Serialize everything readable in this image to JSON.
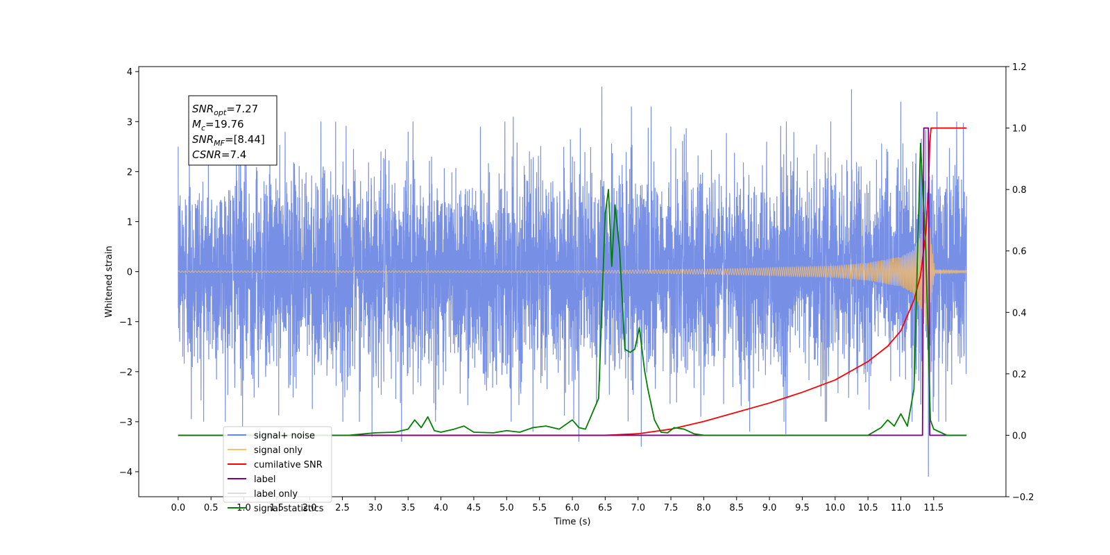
{
  "chart_data": {
    "type": "line",
    "xlabel": "Time (s)",
    "ylabel": "Whitened strain",
    "xlim": [
      -0.6,
      12.6
    ],
    "ylim_left": [
      -4.5,
      4.1
    ],
    "ylim_right": [
      -0.2,
      1.2
    ],
    "x_ticks": [
      0.0,
      0.5,
      1.0,
      1.5,
      2.0,
      2.5,
      3.0,
      3.5,
      4.0,
      4.5,
      5.0,
      5.5,
      6.0,
      6.5,
      7.0,
      7.5,
      8.0,
      8.5,
      9.0,
      9.5,
      10.0,
      10.5,
      11.0,
      11.5
    ],
    "x_tick_labels": [
      "0.0",
      "0.5",
      "1.0",
      "1.5",
      "2.0",
      "2.5",
      "3.0",
      "3.5",
      "4.0",
      "4.5",
      "5.0",
      "5.5",
      "6.0",
      "6.5",
      "7.0",
      "7.5",
      "8.0",
      "8.5",
      "9.0",
      "9.5",
      "10.0",
      "10.5",
      "11.0",
      "11.5"
    ],
    "y_left_ticks": [
      4,
      3,
      2,
      1,
      0,
      -1,
      -2,
      -3,
      -4
    ],
    "y_left_tick_labels": [
      "4",
      "3",
      "2",
      "1",
      "0",
      "−1",
      "−2",
      "−3",
      "−4"
    ],
    "y_right_ticks": [
      1.2,
      1.0,
      0.8,
      0.6,
      0.4,
      0.2,
      0.0,
      -0.2
    ],
    "y_right_tick_labels": [
      "1.2",
      "1.0",
      "0.8",
      "0.6",
      "0.4",
      "0.2",
      "0.0",
      "−0.2"
    ],
    "annotation": {
      "lines": [
        {
          "base": "SNR",
          "sub": "opt",
          "value": "=7.27"
        },
        {
          "base": "M",
          "sub": "c",
          "value": "=19.76"
        },
        {
          "base": "SNR",
          "sub": "MF",
          "value": "=[8.44]"
        },
        {
          "base": "CSNR",
          "sub": "",
          "value": "=7.4"
        }
      ]
    },
    "legend": {
      "position": "lower-left",
      "entries": [
        {
          "label": "signal+ noise",
          "color": "#6b86e3"
        },
        {
          "label": "signal only",
          "color": "#ffc266"
        },
        {
          "label": "cumilative SNR",
          "color": "#ff0000"
        },
        {
          "label": "label",
          "color": "#800080"
        },
        {
          "label": "label only",
          "color": "#dddddd"
        },
        {
          "label": "signal statistics",
          "color": "#008000"
        }
      ]
    },
    "series": [
      {
        "name": "signal+ noise",
        "axis": "left",
        "color": "#6b86e3",
        "x_range": [
          0.0,
          12.0
        ],
        "std": 1.0,
        "spikes": [
          [
            0.0,
            2.5
          ],
          [
            0.17,
            2.55
          ],
          [
            0.2,
            -2.95
          ],
          [
            0.95,
            2.7
          ],
          [
            0.98,
            -3.1
          ],
          [
            2.95,
            -3.3
          ],
          [
            3.4,
            -3.4
          ],
          [
            3.5,
            2.8
          ],
          [
            4.6,
            2.9
          ],
          [
            5.1,
            3.1
          ],
          [
            5.4,
            -3.2
          ],
          [
            6.1,
            -3.4
          ],
          [
            6.45,
            3.7
          ],
          [
            6.9,
            3.3
          ],
          [
            7.05,
            -3.5
          ],
          [
            7.2,
            3.3
          ],
          [
            7.5,
            2.9
          ],
          [
            8.7,
            -3.2
          ],
          [
            9.25,
            -3.25
          ],
          [
            10.25,
            3.65
          ],
          [
            11.0,
            3.4
          ],
          [
            11.42,
            -4.1
          ],
          [
            11.55,
            3.2
          ],
          [
            11.85,
            3.0
          ]
        ]
      },
      {
        "name": "signal only",
        "axis": "left",
        "color": "#ffc266",
        "x_range": [
          0.0,
          12.0
        ],
        "amplitude_points": [
          [
            0.0,
            0.015
          ],
          [
            6.0,
            0.02
          ],
          [
            8.0,
            0.05
          ],
          [
            9.0,
            0.08
          ],
          [
            10.0,
            0.12
          ],
          [
            10.5,
            0.18
          ],
          [
            11.0,
            0.3
          ],
          [
            11.2,
            0.45
          ],
          [
            11.35,
            0.9
          ],
          [
            11.42,
            1.4
          ],
          [
            11.46,
            0.6
          ],
          [
            11.52,
            0.04
          ],
          [
            12.0,
            0.02
          ]
        ]
      },
      {
        "name": "cumilative SNR",
        "axis": "right",
        "color": "#ff0000",
        "x": [
          0.0,
          6.5,
          7.0,
          7.5,
          8.0,
          8.5,
          9.0,
          9.5,
          10.0,
          10.5,
          10.8,
          11.0,
          11.2,
          11.3,
          11.38,
          11.42,
          11.44,
          11.46,
          11.5,
          12.0
        ],
        "y": [
          0.0,
          0.0,
          0.005,
          0.02,
          0.045,
          0.075,
          0.105,
          0.14,
          0.18,
          0.24,
          0.29,
          0.34,
          0.44,
          0.52,
          0.66,
          0.8,
          0.95,
          1.0,
          1.0,
          1.0
        ]
      },
      {
        "name": "label",
        "axis": "right",
        "color": "#800080",
        "x": [
          0.0,
          11.33,
          11.35,
          11.42,
          11.44,
          12.0
        ],
        "y": [
          0.0,
          0.0,
          1.0,
          1.0,
          0.0,
          0.0
        ]
      },
      {
        "name": "signal statistics",
        "axis": "right",
        "color": "#008000",
        "x": [
          0.0,
          2.6,
          3.0,
          3.3,
          3.5,
          3.6,
          3.7,
          3.8,
          3.9,
          4.0,
          4.2,
          4.35,
          4.5,
          4.8,
          5.0,
          5.2,
          5.4,
          5.6,
          5.8,
          6.0,
          6.1,
          6.2,
          6.4,
          6.5,
          6.55,
          6.6,
          6.65,
          6.72,
          6.8,
          6.88,
          6.95,
          7.02,
          7.1,
          7.15,
          7.25,
          7.35,
          7.45,
          7.55,
          7.7,
          7.85,
          8.0,
          8.2,
          10.5,
          10.7,
          10.8,
          10.9,
          11.0,
          11.1,
          11.2,
          11.3,
          11.38,
          11.45,
          11.5,
          11.6,
          11.7,
          12.0
        ],
        "y": [
          0.0,
          0.0,
          0.008,
          0.01,
          0.02,
          0.05,
          0.025,
          0.06,
          0.015,
          0.01,
          0.02,
          0.03,
          0.01,
          0.008,
          0.015,
          0.01,
          0.025,
          0.03,
          0.02,
          0.05,
          0.025,
          0.02,
          0.12,
          0.72,
          0.8,
          0.55,
          0.75,
          0.6,
          0.28,
          0.27,
          0.28,
          0.35,
          0.21,
          0.15,
          0.05,
          0.01,
          0.008,
          0.025,
          0.02,
          0.005,
          0.0,
          0.0,
          0.0,
          0.025,
          0.05,
          0.03,
          0.07,
          0.03,
          0.15,
          0.95,
          0.6,
          0.05,
          0.02,
          0.01,
          0.0,
          0.0
        ]
      }
    ]
  }
}
